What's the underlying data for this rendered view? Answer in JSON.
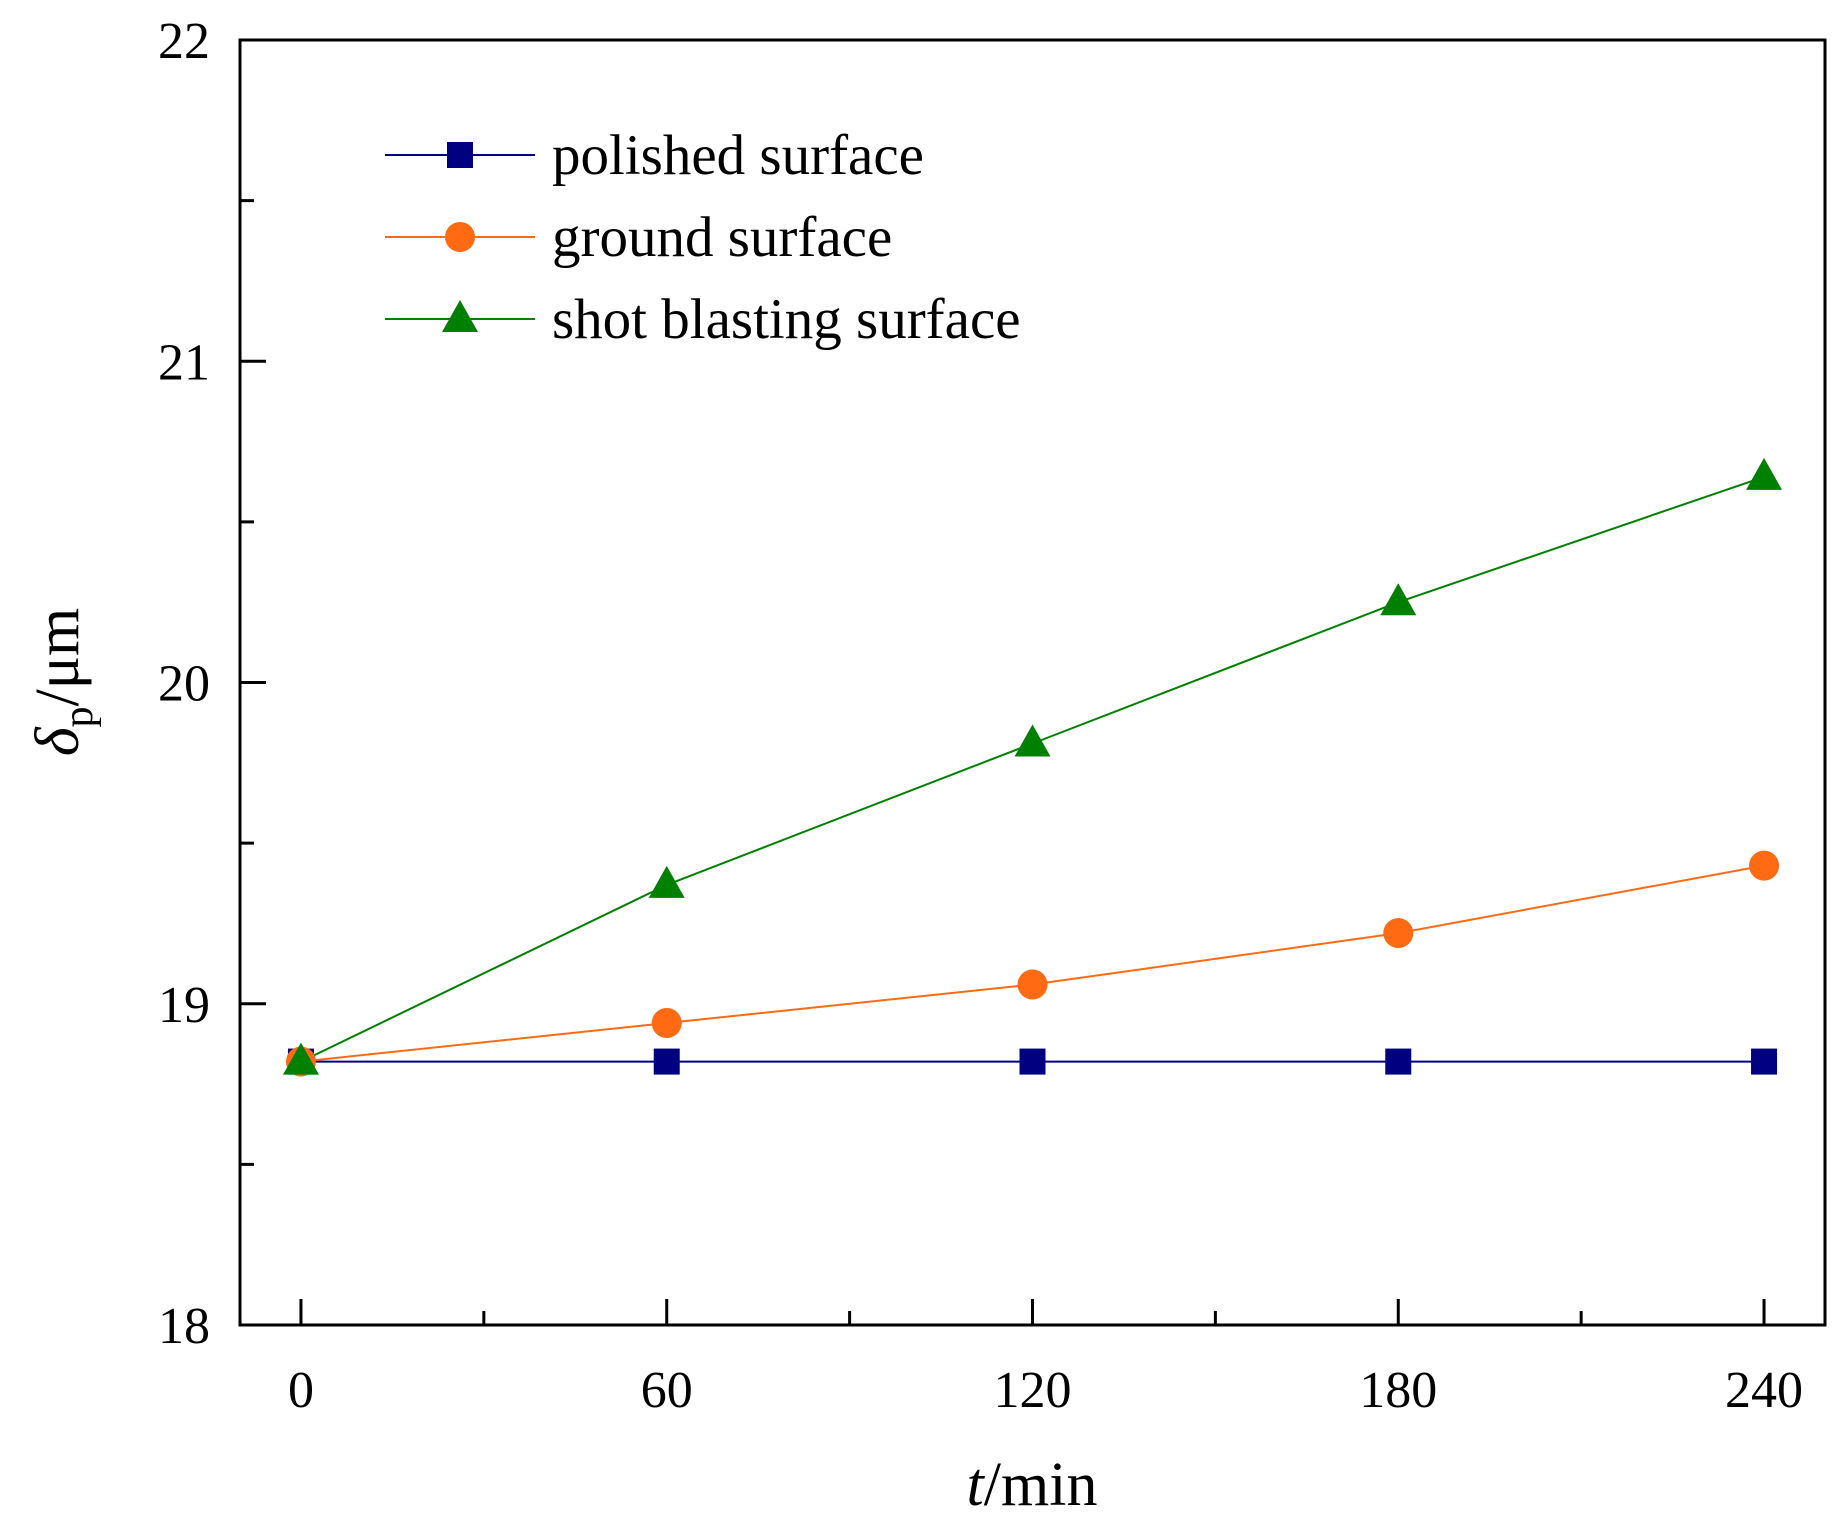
{
  "chart_data": {
    "type": "line",
    "title": "",
    "xlabel": {
      "italic": "t",
      "rest": "/min"
    },
    "ylabel": {
      "symbol": "δ",
      "subscript": "p",
      "rest": "/μm"
    },
    "x": [
      0,
      60,
      120,
      180,
      240
    ],
    "xlim": [
      -10,
      250
    ],
    "ylim": [
      18,
      22
    ],
    "xticks": [
      0,
      60,
      120,
      180,
      240
    ],
    "xtick_labels": [
      "0",
      "60",
      "120",
      "180",
      "240"
    ],
    "xminor": [
      30,
      90,
      150,
      210
    ],
    "yticks": [
      18,
      19,
      20,
      21,
      22
    ],
    "ytick_labels": [
      "18",
      "19",
      "20",
      "21",
      "22"
    ],
    "yminor": [
      18.5,
      19.5,
      20.5,
      21.5
    ],
    "grid": false,
    "legend_position": "top-left",
    "series": [
      {
        "name": "polished surface",
        "marker": "square",
        "color": "#000080",
        "values": [
          18.82,
          18.82,
          18.82,
          18.82,
          18.82
        ]
      },
      {
        "name": "ground surface",
        "marker": "circle",
        "color": "#ff6a13",
        "values": [
          18.82,
          18.94,
          19.06,
          19.22,
          19.43
        ]
      },
      {
        "name": "shot blasting surface",
        "marker": "triangle",
        "color": "#008000",
        "values": [
          18.82,
          19.37,
          19.81,
          20.25,
          20.64
        ]
      }
    ]
  }
}
